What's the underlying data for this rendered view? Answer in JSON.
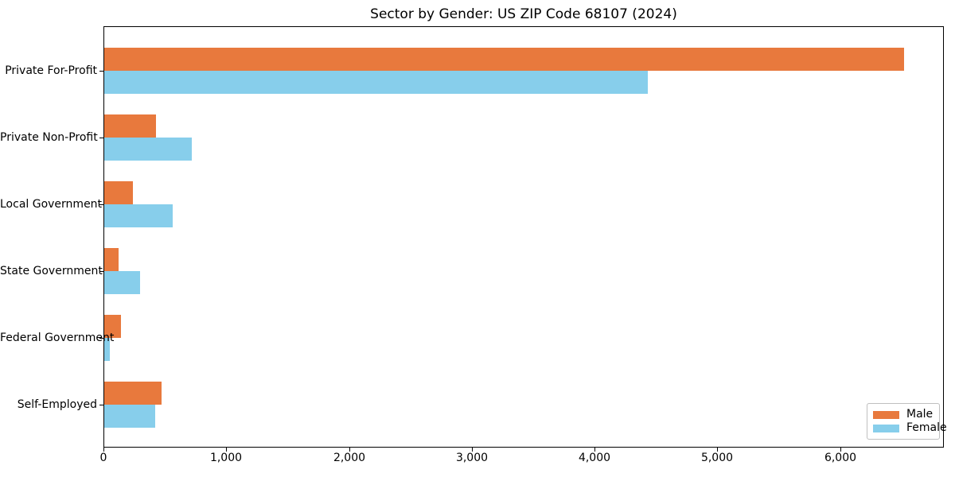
{
  "chart_data": {
    "type": "bar",
    "orientation": "horizontal",
    "title": "Sector by Gender: US ZIP Code 68107 (2024)",
    "categories": [
      "Private For-Profit",
      "Private Non-Profit",
      "Local Government",
      "State Government",
      "Federal Government",
      "Self-Employed"
    ],
    "series": [
      {
        "name": "Male",
        "color": "#E8793D",
        "values": [
          6515,
          420,
          235,
          115,
          133,
          466
        ]
      },
      {
        "name": "Female",
        "color": "#87CEEB",
        "values": [
          4425,
          715,
          560,
          293,
          47,
          418
        ]
      }
    ],
    "xlabel": "",
    "ylabel": "",
    "xlim": [
      0,
      6846
    ],
    "x_ticks": [
      0,
      1000,
      2000,
      3000,
      4000,
      5000,
      6000
    ],
    "x_tick_labels": [
      "0",
      "1,000",
      "2,000",
      "3,000",
      "4,000",
      "5,000",
      "6,000"
    ],
    "grid": false,
    "legend": {
      "position": "lower right",
      "entries": [
        "Male",
        "Female"
      ]
    }
  }
}
